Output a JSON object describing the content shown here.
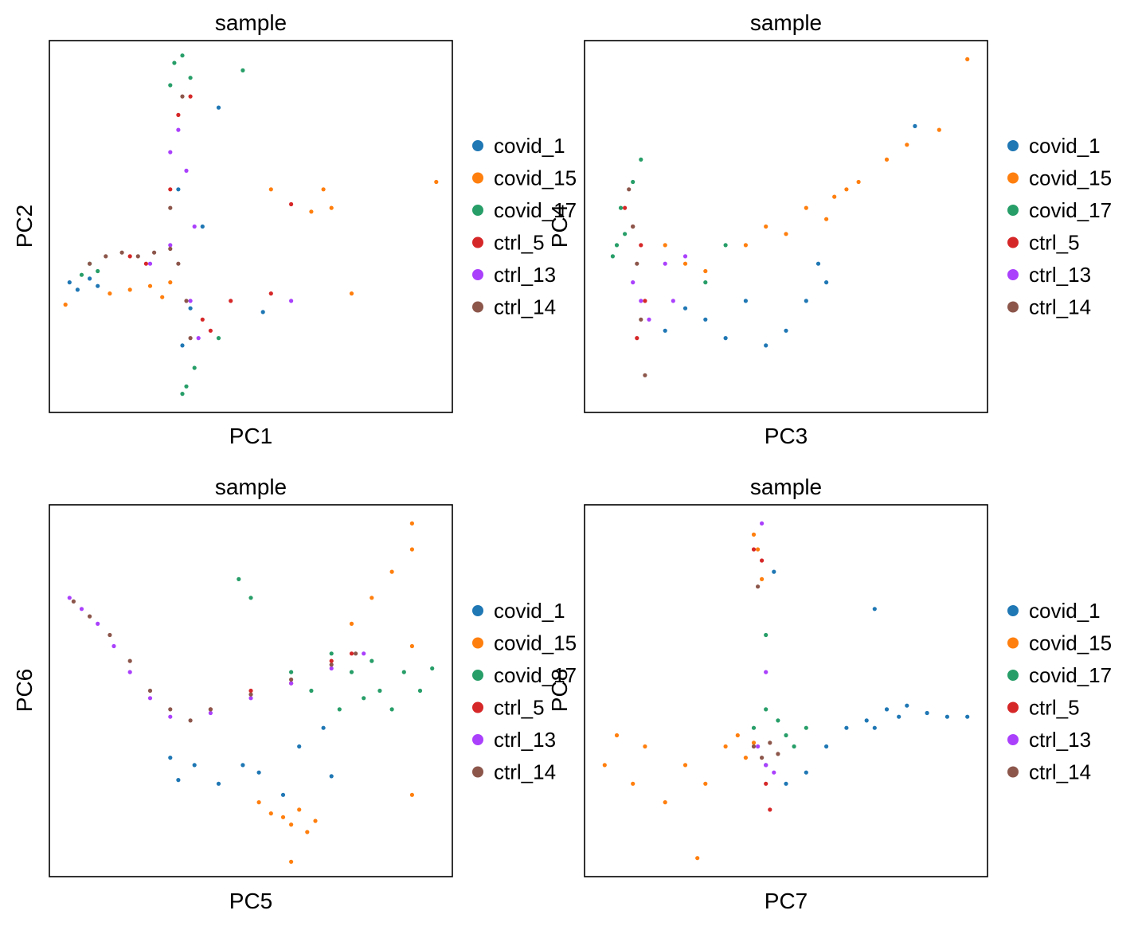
{
  "legend": [
    {
      "name": "covid_1",
      "color": "#1f77b4"
    },
    {
      "name": "covid_15",
      "color": "#ff7f0e"
    },
    {
      "name": "covid_17",
      "color": "#279e68"
    },
    {
      "name": "ctrl_5",
      "color": "#d62728"
    },
    {
      "name": "ctrl_13",
      "color": "#aa40fc"
    },
    {
      "name": "ctrl_14",
      "color": "#8c564b"
    }
  ],
  "chart_data": [
    {
      "type": "scatter",
      "title": "sample",
      "xlabel": "PC1",
      "ylabel": "PC2",
      "ticks": "none",
      "grid": false,
      "legend_position": "right",
      "series": [
        {
          "name": "covid_1",
          "color": "#1f77b4",
          "x": [
            0.05,
            0.07,
            0.1,
            0.12,
            0.32,
            0.33,
            0.35,
            0.38,
            0.42,
            0.53
          ],
          "y": [
            0.35,
            0.33,
            0.36,
            0.34,
            0.6,
            0.18,
            0.28,
            0.5,
            0.82,
            0.27
          ]
        },
        {
          "name": "covid_15",
          "color": "#ff7f0e",
          "x": [
            0.04,
            0.15,
            0.2,
            0.25,
            0.28,
            0.3,
            0.55,
            0.65,
            0.68,
            0.7,
            0.75,
            0.96
          ],
          "y": [
            0.29,
            0.32,
            0.33,
            0.34,
            0.31,
            0.35,
            0.6,
            0.54,
            0.6,
            0.55,
            0.32,
            0.62
          ]
        },
        {
          "name": "covid_17",
          "color": "#279e68",
          "x": [
            0.08,
            0.1,
            0.12,
            0.3,
            0.31,
            0.33,
            0.35,
            0.34,
            0.33,
            0.36,
            0.42,
            0.48
          ],
          "y": [
            0.37,
            0.4,
            0.38,
            0.88,
            0.94,
            0.96,
            0.9,
            0.07,
            0.05,
            0.12,
            0.2,
            0.92
          ]
        },
        {
          "name": "ctrl_5",
          "color": "#d62728",
          "x": [
            0.2,
            0.24,
            0.3,
            0.32,
            0.35,
            0.38,
            0.4,
            0.45,
            0.55,
            0.6
          ],
          "y": [
            0.42,
            0.4,
            0.6,
            0.8,
            0.85,
            0.25,
            0.22,
            0.3,
            0.32,
            0.56
          ]
        },
        {
          "name": "ctrl_13",
          "color": "#aa40fc",
          "x": [
            0.25,
            0.3,
            0.32,
            0.34,
            0.36,
            0.3,
            0.35,
            0.37,
            0.6
          ],
          "y": [
            0.4,
            0.7,
            0.76,
            0.65,
            0.5,
            0.45,
            0.3,
            0.2,
            0.3
          ]
        },
        {
          "name": "ctrl_14",
          "color": "#8c564b",
          "x": [
            0.1,
            0.14,
            0.18,
            0.22,
            0.26,
            0.3,
            0.32,
            0.34,
            0.35,
            0.3,
            0.33
          ],
          "y": [
            0.4,
            0.42,
            0.43,
            0.42,
            0.43,
            0.44,
            0.4,
            0.3,
            0.2,
            0.55,
            0.85
          ]
        }
      ]
    },
    {
      "type": "scatter",
      "title": "sample",
      "xlabel": "PC3",
      "ylabel": "PC4",
      "ticks": "none",
      "grid": false,
      "legend_position": "right",
      "series": [
        {
          "name": "covid_1",
          "color": "#1f77b4",
          "x": [
            0.2,
            0.25,
            0.3,
            0.35,
            0.4,
            0.45,
            0.5,
            0.55,
            0.6,
            0.58,
            0.82
          ],
          "y": [
            0.22,
            0.28,
            0.25,
            0.2,
            0.3,
            0.18,
            0.22,
            0.3,
            0.35,
            0.4,
            0.77
          ]
        },
        {
          "name": "covid_15",
          "color": "#ff7f0e",
          "x": [
            0.2,
            0.25,
            0.3,
            0.4,
            0.45,
            0.5,
            0.55,
            0.6,
            0.62,
            0.65,
            0.68,
            0.75,
            0.8,
            0.88,
            0.95
          ],
          "y": [
            0.45,
            0.4,
            0.38,
            0.45,
            0.5,
            0.48,
            0.55,
            0.52,
            0.58,
            0.6,
            0.62,
            0.68,
            0.72,
            0.76,
            0.95
          ]
        },
        {
          "name": "covid_17",
          "color": "#279e68",
          "x": [
            0.07,
            0.08,
            0.1,
            0.09,
            0.12,
            0.14,
            0.3,
            0.35
          ],
          "y": [
            0.42,
            0.45,
            0.48,
            0.55,
            0.62,
            0.68,
            0.35,
            0.45
          ]
        },
        {
          "name": "ctrl_5",
          "color": "#d62728",
          "x": [
            0.1,
            0.12,
            0.14,
            0.15,
            0.13
          ],
          "y": [
            0.55,
            0.5,
            0.45,
            0.3,
            0.2
          ]
        },
        {
          "name": "ctrl_13",
          "color": "#aa40fc",
          "x": [
            0.12,
            0.14,
            0.16,
            0.2,
            0.25,
            0.22
          ],
          "y": [
            0.35,
            0.3,
            0.25,
            0.4,
            0.42,
            0.3
          ]
        },
        {
          "name": "ctrl_14",
          "color": "#8c564b",
          "x": [
            0.11,
            0.12,
            0.13,
            0.14,
            0.15
          ],
          "y": [
            0.6,
            0.5,
            0.4,
            0.25,
            0.1
          ]
        }
      ]
    },
    {
      "type": "scatter",
      "title": "sample",
      "xlabel": "PC5",
      "ylabel": "PC6",
      "ticks": "none",
      "grid": false,
      "legend_position": "right",
      "series": [
        {
          "name": "covid_1",
          "color": "#1f77b4",
          "x": [
            0.3,
            0.32,
            0.36,
            0.42,
            0.48,
            0.52,
            0.58,
            0.62,
            0.68,
            0.7
          ],
          "y": [
            0.32,
            0.26,
            0.3,
            0.25,
            0.3,
            0.28,
            0.22,
            0.35,
            0.4,
            0.27
          ]
        },
        {
          "name": "covid_15",
          "color": "#ff7f0e",
          "x": [
            0.52,
            0.55,
            0.58,
            0.6,
            0.62,
            0.64,
            0.66,
            0.6,
            0.75,
            0.8,
            0.85,
            0.9,
            0.9,
            0.9,
            0.9
          ],
          "y": [
            0.2,
            0.17,
            0.16,
            0.14,
            0.18,
            0.12,
            0.15,
            0.04,
            0.68,
            0.75,
            0.82,
            0.88,
            0.95,
            0.62,
            0.22
          ]
        },
        {
          "name": "covid_17",
          "color": "#279e68",
          "x": [
            0.6,
            0.65,
            0.7,
            0.72,
            0.75,
            0.78,
            0.8,
            0.82,
            0.85,
            0.88,
            0.92,
            0.95,
            0.5,
            0.47
          ],
          "y": [
            0.55,
            0.5,
            0.6,
            0.45,
            0.55,
            0.48,
            0.58,
            0.5,
            0.45,
            0.55,
            0.5,
            0.56,
            0.75,
            0.8
          ]
        },
        {
          "name": "ctrl_5",
          "color": "#d62728",
          "x": [
            0.4,
            0.5,
            0.6,
            0.7,
            0.75
          ],
          "y": [
            0.45,
            0.5,
            0.52,
            0.58,
            0.6
          ]
        },
        {
          "name": "ctrl_13",
          "color": "#aa40fc",
          "x": [
            0.05,
            0.08,
            0.12,
            0.16,
            0.2,
            0.25,
            0.3,
            0.4,
            0.5,
            0.6,
            0.7,
            0.78
          ],
          "y": [
            0.75,
            0.72,
            0.68,
            0.62,
            0.55,
            0.48,
            0.43,
            0.44,
            0.48,
            0.52,
            0.56,
            0.6
          ]
        },
        {
          "name": "ctrl_14",
          "color": "#8c564b",
          "x": [
            0.06,
            0.1,
            0.15,
            0.2,
            0.25,
            0.3,
            0.35,
            0.4,
            0.5,
            0.6,
            0.7,
            0.76
          ],
          "y": [
            0.74,
            0.7,
            0.65,
            0.58,
            0.5,
            0.45,
            0.42,
            0.45,
            0.49,
            0.53,
            0.57,
            0.6
          ]
        }
      ]
    },
    {
      "type": "scatter",
      "title": "sample",
      "xlabel": "PC7",
      "ylabel": "PC8",
      "ticks": "none",
      "grid": false,
      "legend_position": "right",
      "series": [
        {
          "name": "covid_1",
          "color": "#1f77b4",
          "x": [
            0.45,
            0.5,
            0.55,
            0.6,
            0.65,
            0.7,
            0.72,
            0.75,
            0.78,
            0.8,
            0.85,
            0.9,
            0.95,
            0.72,
            0.47
          ],
          "y": [
            0.3,
            0.25,
            0.28,
            0.35,
            0.4,
            0.42,
            0.4,
            0.45,
            0.43,
            0.46,
            0.44,
            0.43,
            0.43,
            0.72,
            0.82
          ]
        },
        {
          "name": "covid_15",
          "color": "#ff7f0e",
          "x": [
            0.05,
            0.08,
            0.12,
            0.15,
            0.2,
            0.25,
            0.3,
            0.35,
            0.38,
            0.4,
            0.42,
            0.44,
            0.43,
            0.42,
            0.28
          ],
          "y": [
            0.3,
            0.38,
            0.25,
            0.35,
            0.2,
            0.3,
            0.25,
            0.35,
            0.38,
            0.32,
            0.36,
            0.8,
            0.88,
            0.92,
            0.05
          ]
        },
        {
          "name": "covid_17",
          "color": "#279e68",
          "x": [
            0.42,
            0.45,
            0.48,
            0.5,
            0.52,
            0.55,
            0.45
          ],
          "y": [
            0.4,
            0.45,
            0.42,
            0.38,
            0.35,
            0.4,
            0.65
          ]
        },
        {
          "name": "ctrl_5",
          "color": "#d62728",
          "x": [
            0.42,
            0.44,
            0.45,
            0.46
          ],
          "y": [
            0.88,
            0.85,
            0.25,
            0.18
          ]
        },
        {
          "name": "ctrl_13",
          "color": "#aa40fc",
          "x": [
            0.43,
            0.45,
            0.47,
            0.44,
            0.45
          ],
          "y": [
            0.35,
            0.3,
            0.28,
            0.95,
            0.55
          ]
        },
        {
          "name": "ctrl_14",
          "color": "#8c564b",
          "x": [
            0.42,
            0.44,
            0.46,
            0.48,
            0.43
          ],
          "y": [
            0.35,
            0.32,
            0.36,
            0.33,
            0.78
          ]
        }
      ]
    }
  ]
}
